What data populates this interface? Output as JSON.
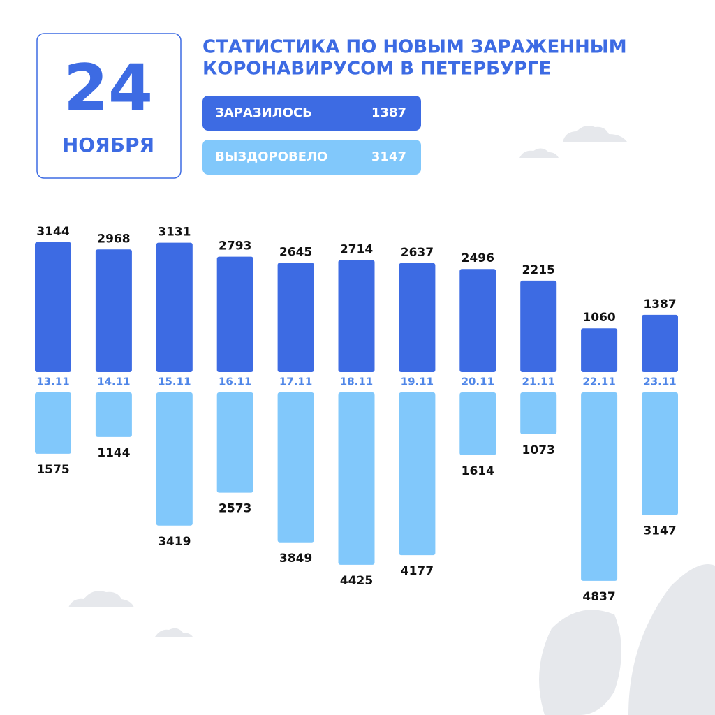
{
  "date_day": "24",
  "date_month": "НОЯБРЯ",
  "chart_data": {
    "type": "bar",
    "title": [
      "СТАТИСТИКА ПО НОВЫМ ЗАРАЖЕННЫМ",
      "КОРОНАВИРУСОМ В ПЕТЕРБУРГЕ"
    ],
    "categories": [
      "13.11",
      "14.11",
      "15.11",
      "16.11",
      "17.11",
      "18.11",
      "19.11",
      "20.11",
      "21.11",
      "22.11",
      "23.11"
    ],
    "series": [
      {
        "name": "ЗАРАЗИЛОСЬ",
        "color": "#3d6be3",
        "values": [
          3144,
          2968,
          3131,
          2793,
          2645,
          2714,
          2637,
          2496,
          2215,
          1060,
          1387
        ]
      },
      {
        "name": "ВЫЗДОРОВЕЛО",
        "color": "#81c8fb",
        "values": [
          1575,
          1144,
          3419,
          2573,
          3849,
          4425,
          4177,
          1614,
          1073,
          4837,
          3147
        ]
      }
    ]
  }
}
